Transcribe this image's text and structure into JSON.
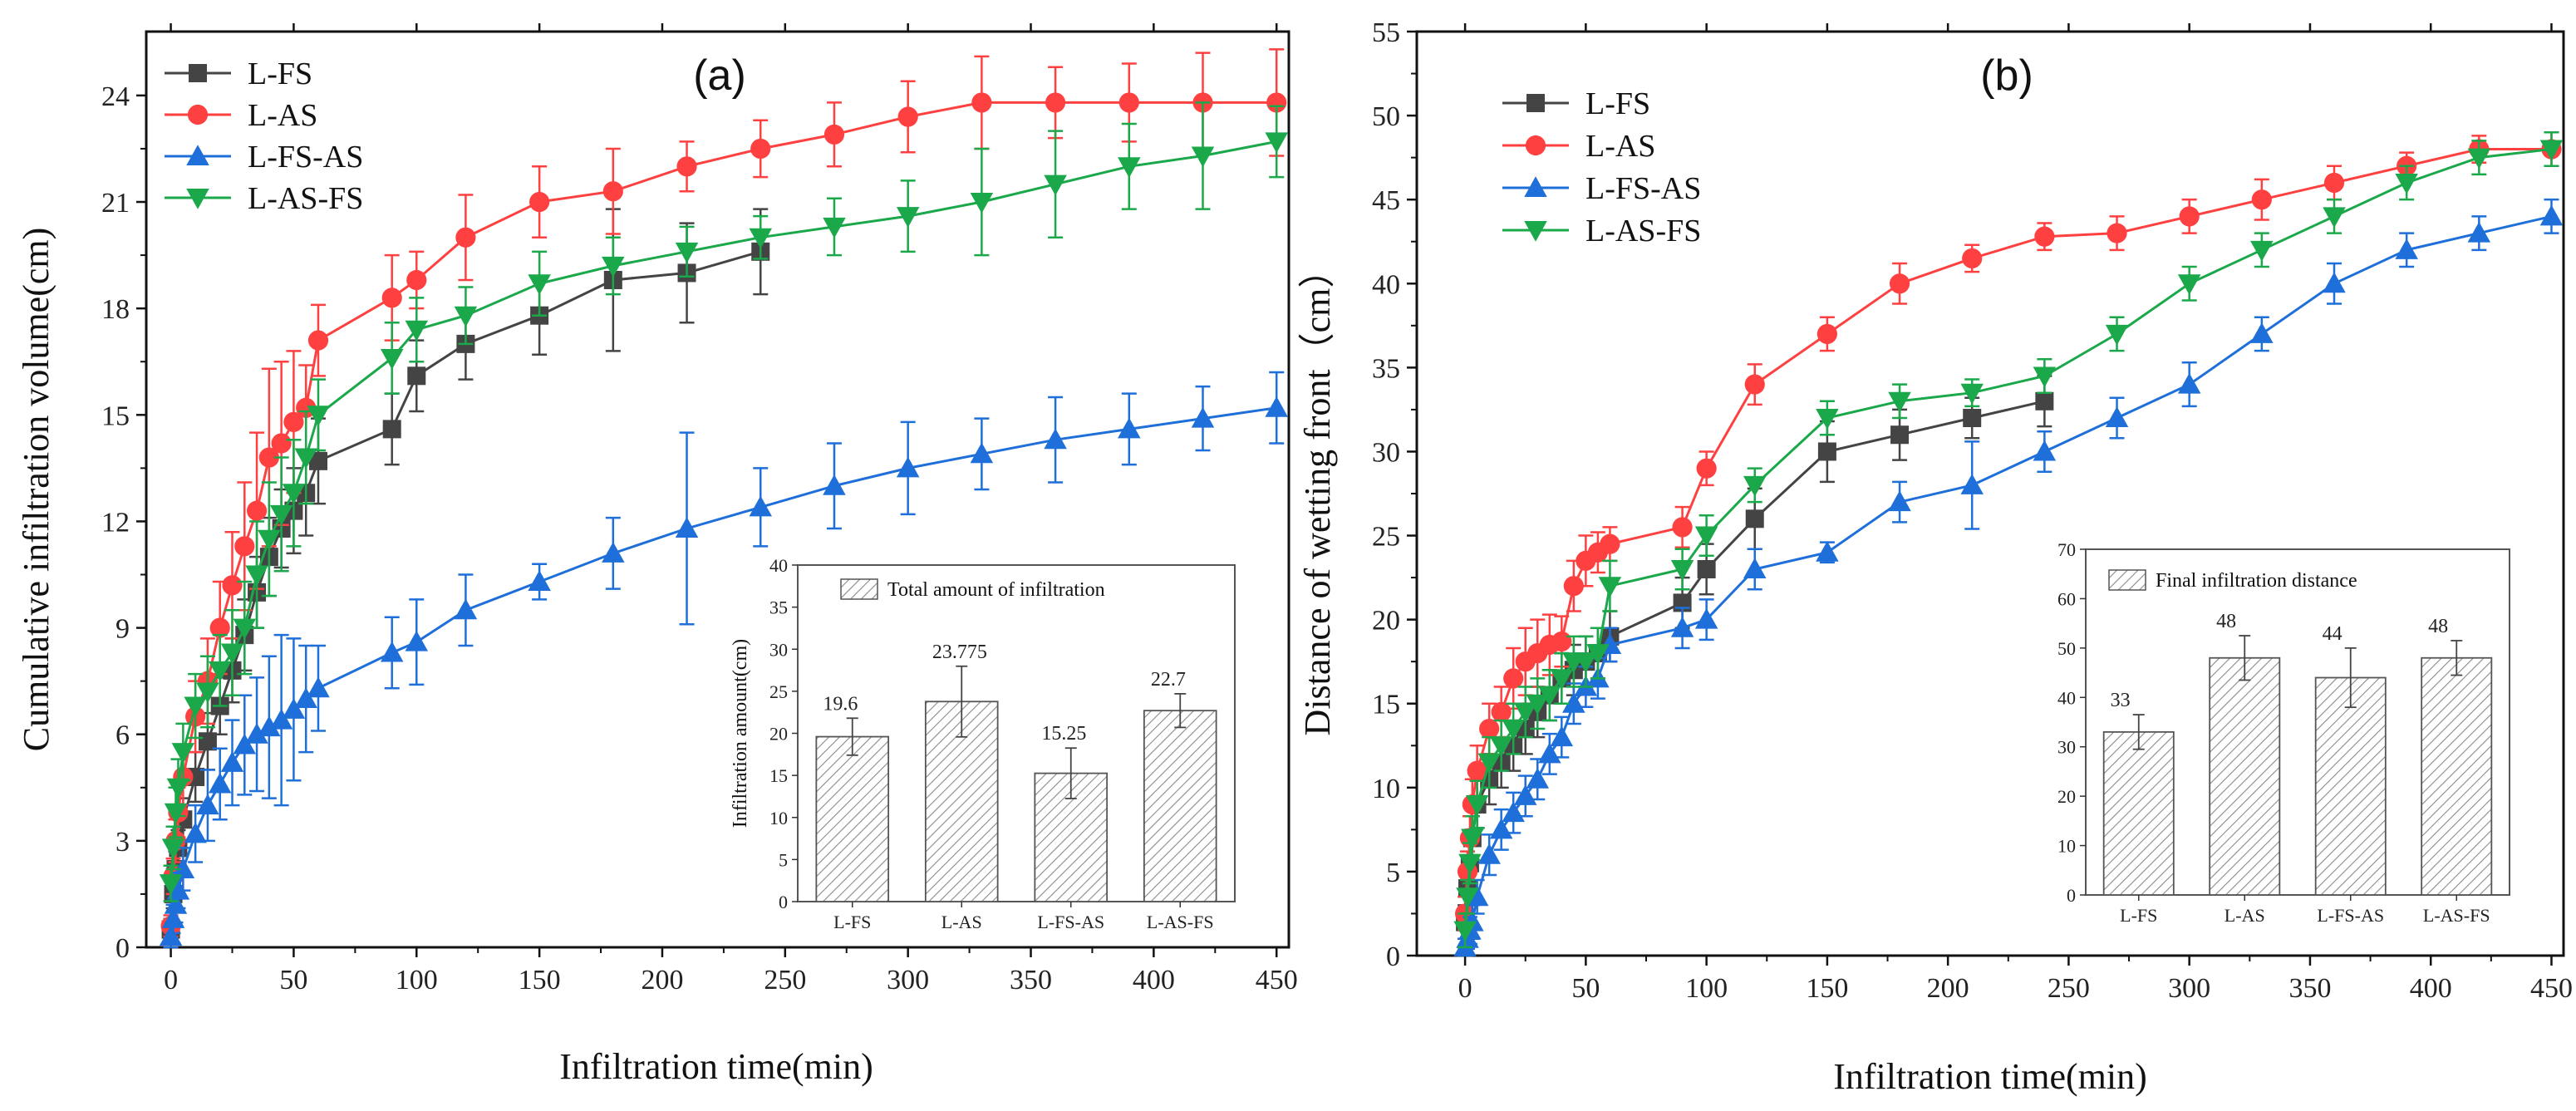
{
  "chart_data": [
    {
      "panel": "(a)",
      "type": "line",
      "xlabel": "Infiltration time(min)",
      "ylabel": "Cumulative infiltration volume(cm)",
      "xlim": [
        -10,
        455
      ],
      "ylim": [
        0,
        25.8
      ],
      "xticks": [
        0,
        50,
        100,
        150,
        200,
        250,
        300,
        350,
        400,
        450
      ],
      "yticks": [
        0,
        3,
        6,
        9,
        12,
        15,
        18,
        21,
        24
      ],
      "legend_position": "top-left",
      "series": [
        {
          "name": "L-FS",
          "color": "#444444",
          "marker": "square",
          "x": [
            0,
            1,
            2,
            3,
            5,
            10,
            15,
            20,
            25,
            30,
            35,
            40,
            45,
            50,
            55,
            60,
            90,
            100,
            120,
            150,
            180,
            210,
            240
          ],
          "y": [
            0.5,
            1.5,
            2.2,
            2.8,
            3.6,
            4.8,
            5.8,
            6.8,
            7.8,
            8.8,
            10.0,
            11.0,
            11.8,
            12.3,
            12.8,
            13.7,
            14.6,
            16.1,
            17.0,
            17.8,
            18.8,
            19.0,
            19.6
          ],
          "err": [
            0.3,
            0.4,
            0.5,
            0.5,
            0.6,
            0.7,
            0.8,
            0.8,
            0.9,
            1.0,
            1.0,
            1.1,
            1.1,
            1.2,
            1.2,
            1.2,
            1.0,
            1.0,
            1.0,
            1.1,
            2.0,
            1.4,
            1.2
          ]
        },
        {
          "name": "L-AS",
          "color": "#ff4040",
          "marker": "circle",
          "x": [
            0,
            1,
            2,
            3,
            5,
            10,
            15,
            20,
            25,
            30,
            35,
            40,
            45,
            50,
            55,
            60,
            90,
            100,
            120,
            150,
            180,
            210,
            240,
            270,
            300,
            330,
            360,
            390,
            420,
            450
          ],
          "y": [
            0.6,
            2.0,
            3.0,
            3.8,
            4.8,
            6.5,
            7.5,
            9.0,
            10.2,
            11.3,
            12.3,
            13.8,
            14.2,
            14.8,
            15.2,
            17.1,
            18.3,
            18.8,
            20.0,
            21.0,
            21.3,
            22.0,
            22.5,
            22.9,
            23.4,
            23.8,
            23.8,
            23.8,
            23.8,
            23.8
          ],
          "err": [
            0.3,
            0.5,
            0.6,
            0.7,
            0.8,
            1.0,
            1.2,
            1.3,
            1.5,
            1.8,
            2.2,
            2.5,
            2.3,
            2.0,
            1.2,
            1.0,
            1.2,
            0.8,
            1.2,
            1.0,
            1.2,
            0.7,
            0.8,
            0.9,
            1.0,
            1.3,
            1.0,
            1.1,
            1.4,
            1.5
          ]
        },
        {
          "name": "L-FS-AS",
          "color": "#1e6fd9",
          "marker": "triangle-up",
          "x": [
            0,
            1,
            2,
            3,
            5,
            10,
            15,
            20,
            25,
            30,
            35,
            40,
            45,
            50,
            55,
            60,
            90,
            100,
            120,
            150,
            180,
            210,
            240,
            270,
            300,
            330,
            360,
            390,
            420,
            450
          ],
          "y": [
            0.3,
            0.8,
            1.2,
            1.6,
            2.2,
            3.2,
            4.0,
            4.6,
            5.2,
            5.7,
            6.0,
            6.2,
            6.4,
            6.7,
            7.0,
            7.3,
            8.3,
            8.6,
            9.5,
            10.3,
            11.1,
            11.8,
            12.4,
            13.0,
            13.5,
            13.9,
            14.3,
            14.6,
            14.9,
            15.2
          ],
          "err": [
            0.3,
            0.4,
            0.5,
            0.5,
            0.6,
            0.8,
            1.0,
            1.0,
            1.2,
            1.4,
            1.6,
            2.0,
            2.4,
            2.0,
            1.5,
            1.2,
            1.0,
            1.2,
            1.0,
            0.5,
            1.0,
            2.7,
            1.1,
            1.2,
            1.3,
            1.0,
            1.2,
            1.0,
            0.9,
            1.0
          ]
        },
        {
          "name": "L-AS-FS",
          "color": "#1aa84a",
          "marker": "triangle-down",
          "x": [
            0,
            1,
            2,
            3,
            5,
            10,
            15,
            20,
            25,
            30,
            35,
            40,
            45,
            50,
            55,
            60,
            90,
            100,
            120,
            150,
            180,
            210,
            240,
            270,
            300,
            330,
            360,
            390,
            420,
            450
          ],
          "y": [
            1.8,
            2.8,
            3.8,
            4.5,
            5.5,
            6.8,
            7.2,
            7.8,
            8.3,
            9.0,
            10.5,
            11.5,
            12.2,
            12.8,
            13.8,
            15.0,
            16.6,
            17.4,
            17.8,
            18.7,
            19.2,
            19.6,
            20.0,
            20.3,
            20.6,
            21.0,
            21.5,
            22.0,
            22.3,
            22.7
          ],
          "err": [
            0.5,
            0.6,
            0.7,
            0.8,
            0.8,
            0.9,
            1.0,
            1.0,
            1.2,
            1.3,
            1.5,
            1.6,
            1.6,
            1.5,
            1.3,
            1.0,
            1.0,
            0.9,
            0.8,
            0.9,
            0.8,
            0.7,
            0.6,
            0.8,
            1.0,
            1.5,
            1.5,
            1.2,
            1.5,
            1.0
          ]
        }
      ],
      "inset": {
        "type": "bar",
        "legend": "Total amount of infiltration",
        "ylabel": "Infiltration amount(cm)",
        "categories": [
          "L-FS",
          "L-AS",
          "L-FS-AS",
          "L-AS-FS"
        ],
        "values": [
          19.6,
          23.775,
          15.25,
          22.7
        ],
        "value_labels": [
          "19.6",
          "23.775",
          "15.25",
          "22.7"
        ],
        "errors": [
          2.2,
          4.2,
          3.0,
          2.0
        ],
        "ylim": [
          0,
          40
        ],
        "yticks": [
          0,
          5,
          10,
          15,
          20,
          25,
          30,
          35,
          40
        ]
      }
    },
    {
      "panel": "(b)",
      "type": "line",
      "xlabel": "Infiltration time(min)",
      "ylabel": "Distance of wetting front（cm）",
      "xlim": [
        -20,
        455
      ],
      "ylim": [
        0,
        55
      ],
      "xticks": [
        0,
        50,
        100,
        150,
        200,
        250,
        300,
        350,
        400,
        450
      ],
      "yticks": [
        0,
        5,
        10,
        15,
        20,
        25,
        30,
        35,
        40,
        45,
        50,
        55
      ],
      "legend_position": "top-left",
      "series": [
        {
          "name": "L-FS",
          "color": "#444444",
          "marker": "square",
          "x": [
            0,
            1,
            2,
            3,
            5,
            10,
            15,
            20,
            25,
            30,
            35,
            40,
            45,
            50,
            55,
            60,
            90,
            100,
            120,
            150,
            180,
            210,
            240
          ],
          "y": [
            2.0,
            4.0,
            5.5,
            7.0,
            9.0,
            10.5,
            11.5,
            12.5,
            13.5,
            14.5,
            15.5,
            16.5,
            17.0,
            17.5,
            18.0,
            19.0,
            21.0,
            23.0,
            26.0,
            30.0,
            31.0,
            32.0,
            33.0
          ],
          "err": [
            1.0,
            1.0,
            1.2,
            1.3,
            1.4,
            1.5,
            1.5,
            1.5,
            1.5,
            1.5,
            1.5,
            1.5,
            1.5,
            1.5,
            1.5,
            1.5,
            1.5,
            1.5,
            1.8,
            1.8,
            1.5,
            1.2,
            1.5
          ]
        },
        {
          "name": "L-AS",
          "color": "#ff4040",
          "marker": "circle",
          "x": [
            0,
            1,
            2,
            3,
            5,
            10,
            15,
            20,
            25,
            30,
            35,
            40,
            45,
            50,
            55,
            60,
            90,
            100,
            120,
            150,
            180,
            210,
            240,
            270,
            300,
            330,
            360,
            390,
            420,
            450
          ],
          "y": [
            2.5,
            5.0,
            7.0,
            9.0,
            11.0,
            13.5,
            14.5,
            16.5,
            17.5,
            18.0,
            18.5,
            18.7,
            22.0,
            23.5,
            24.0,
            24.5,
            25.5,
            29.0,
            34.0,
            37.0,
            40.0,
            41.5,
            42.8,
            43.0,
            44.0,
            45.0,
            46.0,
            47.0,
            48.0,
            48.0
          ],
          "err": [
            1.0,
            1.2,
            1.3,
            1.5,
            1.5,
            1.5,
            1.5,
            1.8,
            2.0,
            2.0,
            1.8,
            1.5,
            1.5,
            1.5,
            1.2,
            1.0,
            1.2,
            1.0,
            1.2,
            1.0,
            1.2,
            0.8,
            0.8,
            1.0,
            1.0,
            1.2,
            1.0,
            0.8,
            0.8,
            1.0
          ]
        },
        {
          "name": "L-FS-AS",
          "color": "#1e6fd9",
          "marker": "triangle-up",
          "x": [
            0,
            1,
            2,
            3,
            5,
            10,
            15,
            20,
            25,
            30,
            35,
            40,
            45,
            50,
            55,
            60,
            90,
            100,
            120,
            150,
            180,
            210,
            240,
            270,
            300,
            330,
            360,
            390,
            420,
            450
          ],
          "y": [
            0.5,
            1.0,
            1.5,
            2.0,
            3.5,
            6.0,
            7.5,
            8.5,
            9.5,
            10.5,
            12.0,
            13.0,
            15.0,
            16.0,
            16.5,
            18.5,
            19.5,
            20.0,
            23.0,
            24.0,
            27.0,
            28.0,
            30.0,
            32.0,
            34.0,
            37.0,
            40.0,
            42.0,
            43.0,
            44.0
          ],
          "err": [
            0.5,
            0.6,
            0.8,
            1.0,
            1.0,
            1.2,
            1.2,
            1.2,
            1.2,
            1.2,
            1.2,
            1.2,
            1.2,
            1.2,
            1.2,
            1.0,
            1.2,
            1.2,
            1.2,
            0.6,
            1.2,
            2.6,
            1.2,
            1.2,
            1.3,
            1.0,
            1.2,
            1.0,
            1.0,
            1.0
          ]
        },
        {
          "name": "L-AS-FS",
          "color": "#1aa84a",
          "marker": "triangle-down",
          "x": [
            0,
            1,
            2,
            3,
            5,
            10,
            15,
            20,
            25,
            30,
            35,
            40,
            45,
            50,
            55,
            60,
            90,
            100,
            120,
            150,
            180,
            210,
            240,
            270,
            300,
            330,
            360,
            390,
            420,
            450
          ],
          "y": [
            1.5,
            3.5,
            5.5,
            7.0,
            9.0,
            11.5,
            12.5,
            13.5,
            14.5,
            15.0,
            15.5,
            16.5,
            17.5,
            17.5,
            18.0,
            22.0,
            23.0,
            25.0,
            28.0,
            32.0,
            33.0,
            33.5,
            34.5,
            37.0,
            40.0,
            42.0,
            44.0,
            46.0,
            47.5,
            48.0
          ],
          "err": [
            1.0,
            1.0,
            1.2,
            1.3,
            1.4,
            1.5,
            1.5,
            1.5,
            1.5,
            1.5,
            1.5,
            1.5,
            1.5,
            1.5,
            1.5,
            1.5,
            1.2,
            1.2,
            1.0,
            1.0,
            1.0,
            0.8,
            1.0,
            1.0,
            1.0,
            1.0,
            1.0,
            1.0,
            1.0,
            1.0
          ]
        }
      ],
      "inset": {
        "type": "bar",
        "legend": "Final infiltration distance",
        "ylabel": "",
        "categories": [
          "L-FS",
          "L-AS",
          "L-FS-AS",
          "L-AS-FS"
        ],
        "values": [
          33,
          48,
          44,
          48
        ],
        "value_labels": [
          "33",
          "48",
          "44",
          "48"
        ],
        "errors": [
          3.5,
          4.5,
          6.0,
          3.5
        ],
        "ylim": [
          0,
          70
        ],
        "yticks": [
          0,
          10,
          20,
          30,
          40,
          50,
          60,
          70
        ]
      }
    }
  ]
}
